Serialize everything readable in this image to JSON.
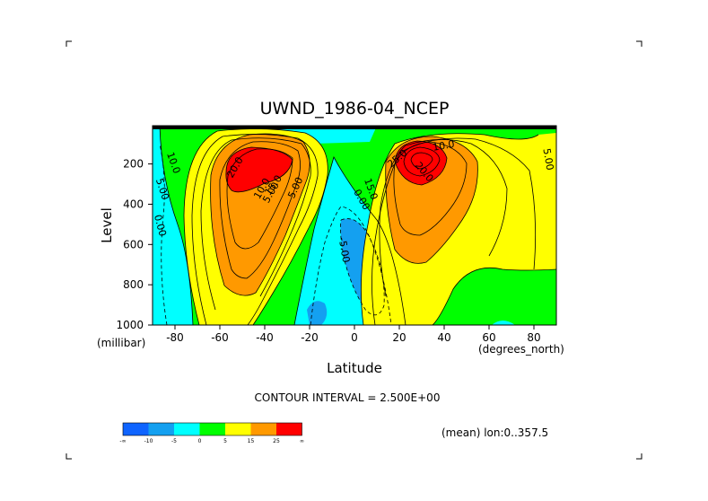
{
  "chart_data": {
    "type": "contour",
    "title": "UWND_1986-04_NCEP",
    "xlabel": "Latitude",
    "ylabel": "Level",
    "x_units": "(degrees_north)",
    "y_units": "(millibar)",
    "xlim": [
      -90,
      90
    ],
    "ylim": [
      1000,
      10
    ],
    "x_ticks": [
      "-80",
      "-60",
      "-40",
      "-20",
      "0",
      "20",
      "40",
      "60",
      "80"
    ],
    "y_ticks": [
      "200",
      "400",
      "600",
      "800",
      "1000"
    ],
    "contour_interval_label": "CONTOUR INTERVAL = 2.500E+00",
    "contour_labels": [
      "10.0",
      "5.00",
      "0.00",
      "20.0",
      "15.0",
      "10.0",
      "5.00",
      "-5.00",
      "25.0",
      "20.0",
      "10.0",
      "5.00",
      "0.00",
      "15.0",
      "5.00"
    ],
    "colorbar": {
      "colors": [
        "#0f64ff",
        "#14a0f0",
        "#00ffff",
        "#00ff00",
        "#ffff00",
        "#ff9900",
        "#ff0000"
      ],
      "labels": [
        "-∞",
        "-10",
        "-5",
        "0",
        "5",
        "15",
        "25",
        "∞"
      ]
    },
    "note": "(mean) lon:0..357.5",
    "jets": [
      {
        "lat": -50,
        "level": 200,
        "max": 27.5
      },
      {
        "lat": 28,
        "level": 200,
        "max": 35
      }
    ]
  }
}
